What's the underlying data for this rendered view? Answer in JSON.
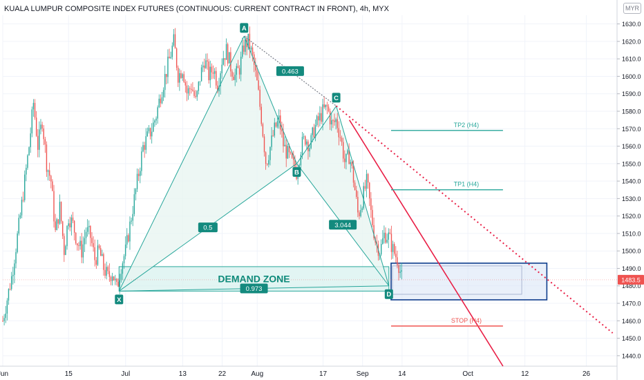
{
  "chart_title": "KUALA LUMPUR COMPOSITE INDEX FUTURES (CONTINUOUS: CURRENT CONTRACT IN FRONT), 4h, MYX",
  "currency": "MYR",
  "last_price_label": "1483.5",
  "colors": {
    "up": "#26a69a",
    "down": "#ef5350",
    "pattern": "#26a69a",
    "pattern_fill": "#e8f5f1",
    "channel": "#e91e45",
    "demand_zone_stroke": "#0d3c8c",
    "demand_zone_fill": "#dbe6f7",
    "axis_text": "#131722"
  },
  "chart_data": {
    "type": "candlestick",
    "title": "KUALA LUMPUR COMPOSITE INDEX FUTURES (CONTINUOUS: CURRENT CONTRACT IN FRONT), 4h, MYX",
    "interval": "4h",
    "exchange": "MYX",
    "y_axis": {
      "side": "right",
      "ticks": [
        1440,
        1450,
        1460,
        1470,
        1480,
        1490,
        1500,
        1510,
        1520,
        1530,
        1540,
        1550,
        1560,
        1570,
        1580,
        1590,
        1600,
        1610,
        1620,
        1630
      ],
      "range": [
        1434,
        1635
      ]
    },
    "x_axis": {
      "labels": [
        "Jun",
        "15",
        "Jul",
        "13",
        "22",
        "Aug",
        "17",
        "Sep",
        "14",
        "Oct",
        "12",
        "26"
      ],
      "label_days": [
        0,
        15,
        28,
        41,
        50,
        58,
        73,
        82,
        91,
        106,
        119,
        133
      ],
      "range_days": [
        0,
        140
      ]
    },
    "price_path": [
      [
        0,
        1460
      ],
      [
        2,
        1485
      ],
      [
        4,
        1520
      ],
      [
        6,
        1560
      ],
      [
        7,
        1585
      ],
      [
        8,
        1560
      ],
      [
        9,
        1575
      ],
      [
        10,
        1550
      ],
      [
        11,
        1540
      ],
      [
        12,
        1510
      ],
      [
        13,
        1525
      ],
      [
        14,
        1500
      ],
      [
        15,
        1520
      ],
      [
        16,
        1515
      ],
      [
        17,
        1505
      ],
      [
        18,
        1500
      ],
      [
        19,
        1512
      ],
      [
        20,
        1508
      ],
      [
        21,
        1495
      ],
      [
        22,
        1500
      ],
      [
        23,
        1490
      ],
      [
        24,
        1485
      ],
      [
        25,
        1488
      ],
      [
        26,
        1478
      ],
      [
        27,
        1492
      ],
      [
        28,
        1500
      ],
      [
        29,
        1515
      ],
      [
        30,
        1530
      ],
      [
        31,
        1545
      ],
      [
        32,
        1560
      ],
      [
        33,
        1565
      ],
      [
        34,
        1570
      ],
      [
        35,
        1578
      ],
      [
        36,
        1590
      ],
      [
        37,
        1600
      ],
      [
        38,
        1610
      ],
      [
        39,
        1620
      ],
      [
        40,
        1600
      ],
      [
        41,
        1605
      ],
      [
        42,
        1590
      ],
      [
        43,
        1595
      ],
      [
        44,
        1585
      ],
      [
        45,
        1600
      ],
      [
        46,
        1610
      ],
      [
        47,
        1600
      ],
      [
        48,
        1605
      ],
      [
        49,
        1595
      ],
      [
        50,
        1610
      ],
      [
        51,
        1615
      ],
      [
        52,
        1605
      ],
      [
        53,
        1600
      ],
      [
        54,
        1605
      ],
      [
        55,
        1618
      ],
      [
        56,
        1620
      ],
      [
        57,
        1610
      ],
      [
        58,
        1595
      ],
      [
        59,
        1575
      ],
      [
        60,
        1550
      ],
      [
        61,
        1560
      ],
      [
        62,
        1570
      ],
      [
        63,
        1575
      ],
      [
        64,
        1560
      ],
      [
        65,
        1555
      ],
      [
        66,
        1550
      ],
      [
        67,
        1545
      ],
      [
        68,
        1560
      ],
      [
        69,
        1565
      ],
      [
        70,
        1560
      ],
      [
        71,
        1570
      ],
      [
        72,
        1575
      ],
      [
        73,
        1580
      ],
      [
        74,
        1582
      ],
      [
        75,
        1572
      ],
      [
        76,
        1575
      ],
      [
        77,
        1565
      ],
      [
        78,
        1550
      ],
      [
        79,
        1555
      ],
      [
        80,
        1540
      ],
      [
        81,
        1520
      ],
      [
        82,
        1530
      ],
      [
        83,
        1540
      ],
      [
        84,
        1520
      ],
      [
        85,
        1505
      ],
      [
        86,
        1500
      ],
      [
        87,
        1510
      ],
      [
        88,
        1508
      ],
      [
        89,
        1500
      ],
      [
        90,
        1495
      ],
      [
        91,
        1483.5
      ]
    ],
    "harmonic_pattern": {
      "points": [
        {
          "label": "X",
          "day": 26.5,
          "price": 1477
        },
        {
          "label": "A",
          "day": 55,
          "price": 1623
        },
        {
          "label": "B",
          "day": 67,
          "price": 1550
        },
        {
          "label": "C",
          "day": 76,
          "price": 1583
        },
        {
          "label": "D",
          "day": 88,
          "price": 1480
        }
      ],
      "ratios": [
        {
          "label": "0.463",
          "from": "A",
          "to": "C"
        },
        {
          "label": "0.5",
          "from": "X",
          "to": "B"
        },
        {
          "label": "3.044",
          "from": "B",
          "to": "D"
        },
        {
          "label": "0.973",
          "from": "X",
          "to": "D"
        }
      ]
    },
    "zones": [
      {
        "label": "DEMAND ZONE",
        "day_start": 26.5,
        "day_end": 88,
        "price_low": 1477,
        "price_high": 1491
      },
      {
        "label": "",
        "day_start": 88.5,
        "day_end": 124,
        "price_low": 1472,
        "price_high": 1493
      }
    ],
    "levels": [
      {
        "label": "TP2 (H4)",
        "price": 1569,
        "day_start": 88.5,
        "day_end": 114,
        "kind": "target"
      },
      {
        "label": "TP1 (H4)",
        "price": 1535,
        "day_start": 88.5,
        "day_end": 114,
        "kind": "target"
      },
      {
        "label": "STOP (H4)",
        "price": 1457,
        "day_start": 88.5,
        "day_end": 114,
        "kind": "stop"
      }
    ],
    "trendlines": [
      {
        "from": {
          "day": 76,
          "price": 1583
        },
        "to": {
          "day": 139,
          "price": 1453
        },
        "style": "dotted"
      },
      {
        "from": {
          "day": 79,
          "price": 1575
        },
        "to": {
          "day": 114,
          "price": 1434
        },
        "style": "solid"
      }
    ],
    "last_price": 1483.5
  }
}
